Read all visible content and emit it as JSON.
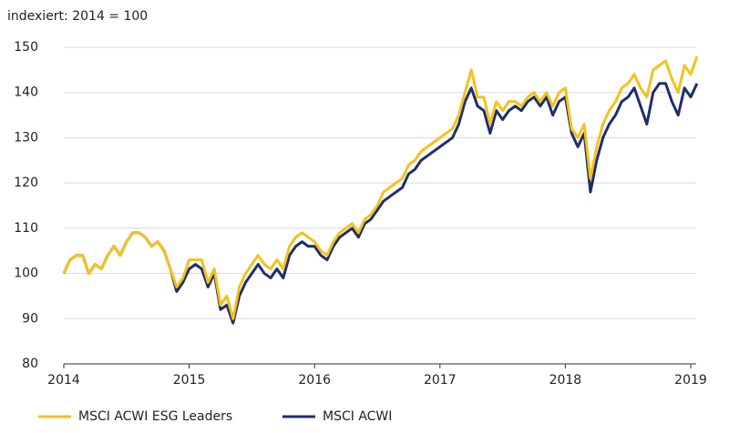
{
  "chart_data": {
    "type": "line",
    "ylabel": "indexiert: 2014 = 100",
    "x": [
      2014,
      2014.05,
      2014.1,
      2014.15,
      2014.2,
      2014.25,
      2014.3,
      2014.35,
      2014.4,
      2014.45,
      2014.5,
      2014.55,
      2014.6,
      2014.65,
      2014.7,
      2014.75,
      2014.8,
      2014.85,
      2014.9,
      2014.95,
      2015,
      2015.05,
      2015.1,
      2015.15,
      2015.2,
      2015.25,
      2015.3,
      2015.35,
      2015.4,
      2015.45,
      2015.5,
      2015.55,
      2015.6,
      2015.65,
      2015.7,
      2015.75,
      2015.8,
      2015.85,
      2015.9,
      2015.95,
      2016,
      2016.05,
      2016.1,
      2016.15,
      2016.2,
      2016.25,
      2016.3,
      2016.35,
      2016.4,
      2016.45,
      2016.5,
      2016.55,
      2016.6,
      2016.65,
      2016.7,
      2016.75,
      2016.8,
      2016.85,
      2016.9,
      2016.95,
      2017,
      2017.05,
      2017.1,
      2017.15,
      2017.2,
      2017.25,
      2017.3,
      2017.35,
      2017.4,
      2017.45,
      2017.5,
      2017.55,
      2017.6,
      2017.65,
      2017.7,
      2017.75,
      2017.8,
      2017.85,
      2017.9,
      2017.95,
      2018,
      2018.05,
      2018.1,
      2018.15,
      2018.2,
      2018.25,
      2018.3,
      2018.35,
      2018.4,
      2018.45,
      2018.5,
      2018.55,
      2018.6,
      2018.65,
      2018.7,
      2018.75,
      2018.8,
      2018.85,
      2018.9,
      2018.95,
      2019,
      2019.05
    ],
    "series": [
      {
        "name": "MSCI ACWI ESG Leaders",
        "color": "#f4c21c",
        "values": [
          100,
          103,
          104,
          104,
          100,
          102,
          101,
          104,
          106,
          104,
          107,
          109,
          109,
          108,
          106,
          107,
          105,
          101,
          97,
          99,
          103,
          103,
          103,
          98,
          101,
          93,
          95,
          90,
          97,
          100,
          102,
          104,
          102,
          101,
          103,
          101,
          106,
          108,
          109,
          108,
          107,
          105,
          104,
          107,
          109,
          110,
          111,
          109,
          112,
          113,
          115,
          118,
          119,
          120,
          121,
          124,
          125,
          127,
          128,
          129,
          130,
          131,
          132,
          135,
          140,
          145,
          139,
          139,
          133,
          138,
          136,
          138,
          138,
          137,
          139,
          140,
          138,
          140,
          137,
          140,
          141,
          132,
          130,
          133,
          121,
          128,
          133,
          136,
          138,
          141,
          142,
          144,
          141,
          139,
          145,
          146,
          147,
          143,
          140,
          146,
          144,
          148
        ]
      },
      {
        "name": "MSCI ACWI",
        "color": "#1f2e6e",
        "values": [
          100,
          103,
          104,
          104,
          100,
          102,
          101,
          104,
          106,
          104,
          107,
          109,
          109,
          108,
          106,
          107,
          105,
          101,
          96,
          98,
          101,
          102,
          101,
          97,
          100,
          92,
          93,
          89,
          95,
          98,
          100,
          102,
          100,
          99,
          101,
          99,
          104,
          106,
          107,
          106,
          106,
          104,
          103,
          106,
          108,
          109,
          110,
          108,
          111,
          112,
          114,
          116,
          117,
          118,
          119,
          122,
          123,
          125,
          126,
          127,
          128,
          129,
          130,
          133,
          138,
          141,
          137,
          136,
          131,
          136,
          134,
          136,
          137,
          136,
          138,
          139,
          137,
          139,
          135,
          138,
          139,
          131,
          128,
          131,
          118,
          125,
          130,
          133,
          135,
          138,
          139,
          141,
          137,
          133,
          140,
          142,
          142,
          138,
          135,
          141,
          139,
          142
        ]
      }
    ],
    "xlim": [
      2014,
      2019.1
    ],
    "xticks": [
      2014,
      2015,
      2016,
      2017,
      2018,
      2019
    ],
    "ylim": [
      80,
      150
    ],
    "yticks": [
      80,
      90,
      100,
      110,
      120,
      130,
      140,
      150
    ],
    "grid": true,
    "legend": "bottom"
  }
}
